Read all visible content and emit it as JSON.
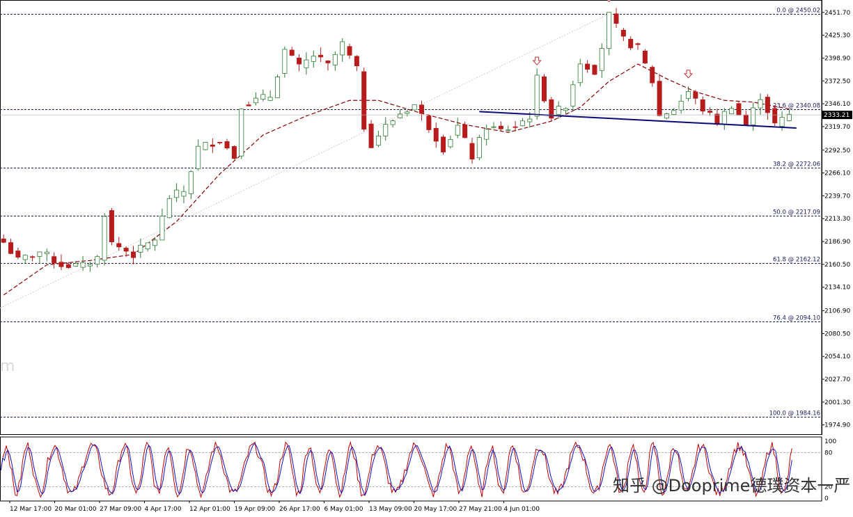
{
  "chart_data": {
    "type": "candlestick",
    "x_tick_labels": [
      "12 Mar 17:00",
      "20 Mar 01:00",
      "27 Mar 09:00",
      "4 Apr 17:00",
      "12 Apr 01:00",
      "19 Apr 09:00",
      "26 Apr 17:00",
      "6 May 01:00",
      "13 May 09:00",
      "20 May 17:00",
      "27 May 21:00",
      "4 Jun 01:00"
    ],
    "y_tick_labels": [
      2451.7,
      2425.3,
      2398.9,
      2372.5,
      2346.1,
      2319.7,
      2292.5,
      2266.1,
      2239.7,
      2213.3,
      2186.9,
      2160.5,
      2134.1,
      2106.9,
      2080.5,
      2054.1,
      2027.7,
      2001.3,
      1974.9
    ],
    "ylim": [
      1965,
      2462
    ],
    "current_price": "2333.21",
    "fibonacci": [
      {
        "label": "0.0 @ 2450.02",
        "value": 2450.02
      },
      {
        "label": "23.6 @ 2340.08",
        "value": 2340.08
      },
      {
        "label": "38.2 @ 2272.06",
        "value": 2272.06
      },
      {
        "label": "50.0 @ 2217.09",
        "value": 2217.09
      },
      {
        "label": "61.8 @ 2162.12",
        "value": 2162.12
      },
      {
        "label": "76.4 @ 2094.10",
        "value": 2094.1
      },
      {
        "label": "100.0 @ 1984.16",
        "value": 1984.16
      }
    ],
    "neckline": {
      "start_bar": 66,
      "start_value": 2337,
      "end_bar": 110,
      "end_value": 2318
    },
    "peak_markers": [
      {
        "bar": 74,
        "name": "left-shoulder"
      },
      {
        "bar": 84,
        "name": "head"
      },
      {
        "bar": 95,
        "name": "right-shoulder"
      }
    ],
    "price_anchors": [
      [
        0,
        2186
      ],
      [
        2,
        2165
      ],
      [
        5,
        2175
      ],
      [
        8,
        2160
      ],
      [
        11,
        2158
      ],
      [
        13,
        2168
      ],
      [
        14,
        2220
      ],
      [
        15,
        2185
      ],
      [
        18,
        2172
      ],
      [
        21,
        2190
      ],
      [
        23,
        2238
      ],
      [
        25,
        2245
      ],
      [
        27,
        2295
      ],
      [
        30,
        2305
      ],
      [
        32,
        2285
      ],
      [
        33,
        2345
      ],
      [
        35,
        2350
      ],
      [
        37,
        2355
      ],
      [
        39,
        2408
      ],
      [
        41,
        2388
      ],
      [
        43,
        2402
      ],
      [
        45,
        2390
      ],
      [
        47,
        2415
      ],
      [
        49,
        2385
      ],
      [
        50,
        2320
      ],
      [
        51,
        2300
      ],
      [
        53,
        2320
      ],
      [
        55,
        2335
      ],
      [
        57,
        2345
      ],
      [
        59,
        2320
      ],
      [
        61,
        2295
      ],
      [
        63,
        2320
      ],
      [
        65,
        2285
      ],
      [
        67,
        2320
      ],
      [
        69,
        2315
      ],
      [
        71,
        2320
      ],
      [
        73,
        2332
      ],
      [
        74,
        2375
      ],
      [
        76,
        2332
      ],
      [
        78,
        2345
      ],
      [
        80,
        2395
      ],
      [
        82,
        2385
      ],
      [
        83,
        2412
      ],
      [
        84,
        2448
      ],
      [
        86,
        2420
      ],
      [
        88,
        2410
      ],
      [
        90,
        2372
      ],
      [
        91,
        2332
      ],
      [
        93,
        2340
      ],
      [
        95,
        2360
      ],
      [
        97,
        2340
      ],
      [
        99,
        2325
      ],
      [
        101,
        2345
      ],
      [
        103,
        2322
      ],
      [
        105,
        2355
      ],
      [
        107,
        2322
      ],
      [
        109,
        2333
      ]
    ],
    "ma_anchors": [
      [
        0,
        2125
      ],
      [
        6,
        2160
      ],
      [
        12,
        2165
      ],
      [
        18,
        2172
      ],
      [
        24,
        2210
      ],
      [
        30,
        2265
      ],
      [
        36,
        2310
      ],
      [
        42,
        2332
      ],
      [
        48,
        2350
      ],
      [
        52,
        2350
      ],
      [
        58,
        2335
      ],
      [
        64,
        2322
      ],
      [
        70,
        2313
      ],
      [
        76,
        2326
      ],
      [
        80,
        2342
      ],
      [
        84,
        2372
      ],
      [
        88,
        2392
      ],
      [
        92,
        2375
      ],
      [
        96,
        2360
      ],
      [
        100,
        2350
      ],
      [
        104,
        2348
      ],
      [
        109,
        2340
      ]
    ],
    "stochastic": {
      "levels": [
        100,
        80,
        20,
        0
      ],
      "level_labels": [
        "100",
        "80",
        "20",
        "0"
      ]
    }
  },
  "watermarks": {
    "left_fragment": "m",
    "brand": "知乎 @Dooprime德璞资本一严"
  },
  "colors": {
    "bull": "#2e7d32",
    "bear": "#b71c1c",
    "ma": "#8b0000",
    "neckline": "#0a0a78",
    "fib": "#1a1a5e",
    "stoch_main": "#c00000",
    "stoch_signal": "#1010c0",
    "grid": "#8a8a8a"
  }
}
